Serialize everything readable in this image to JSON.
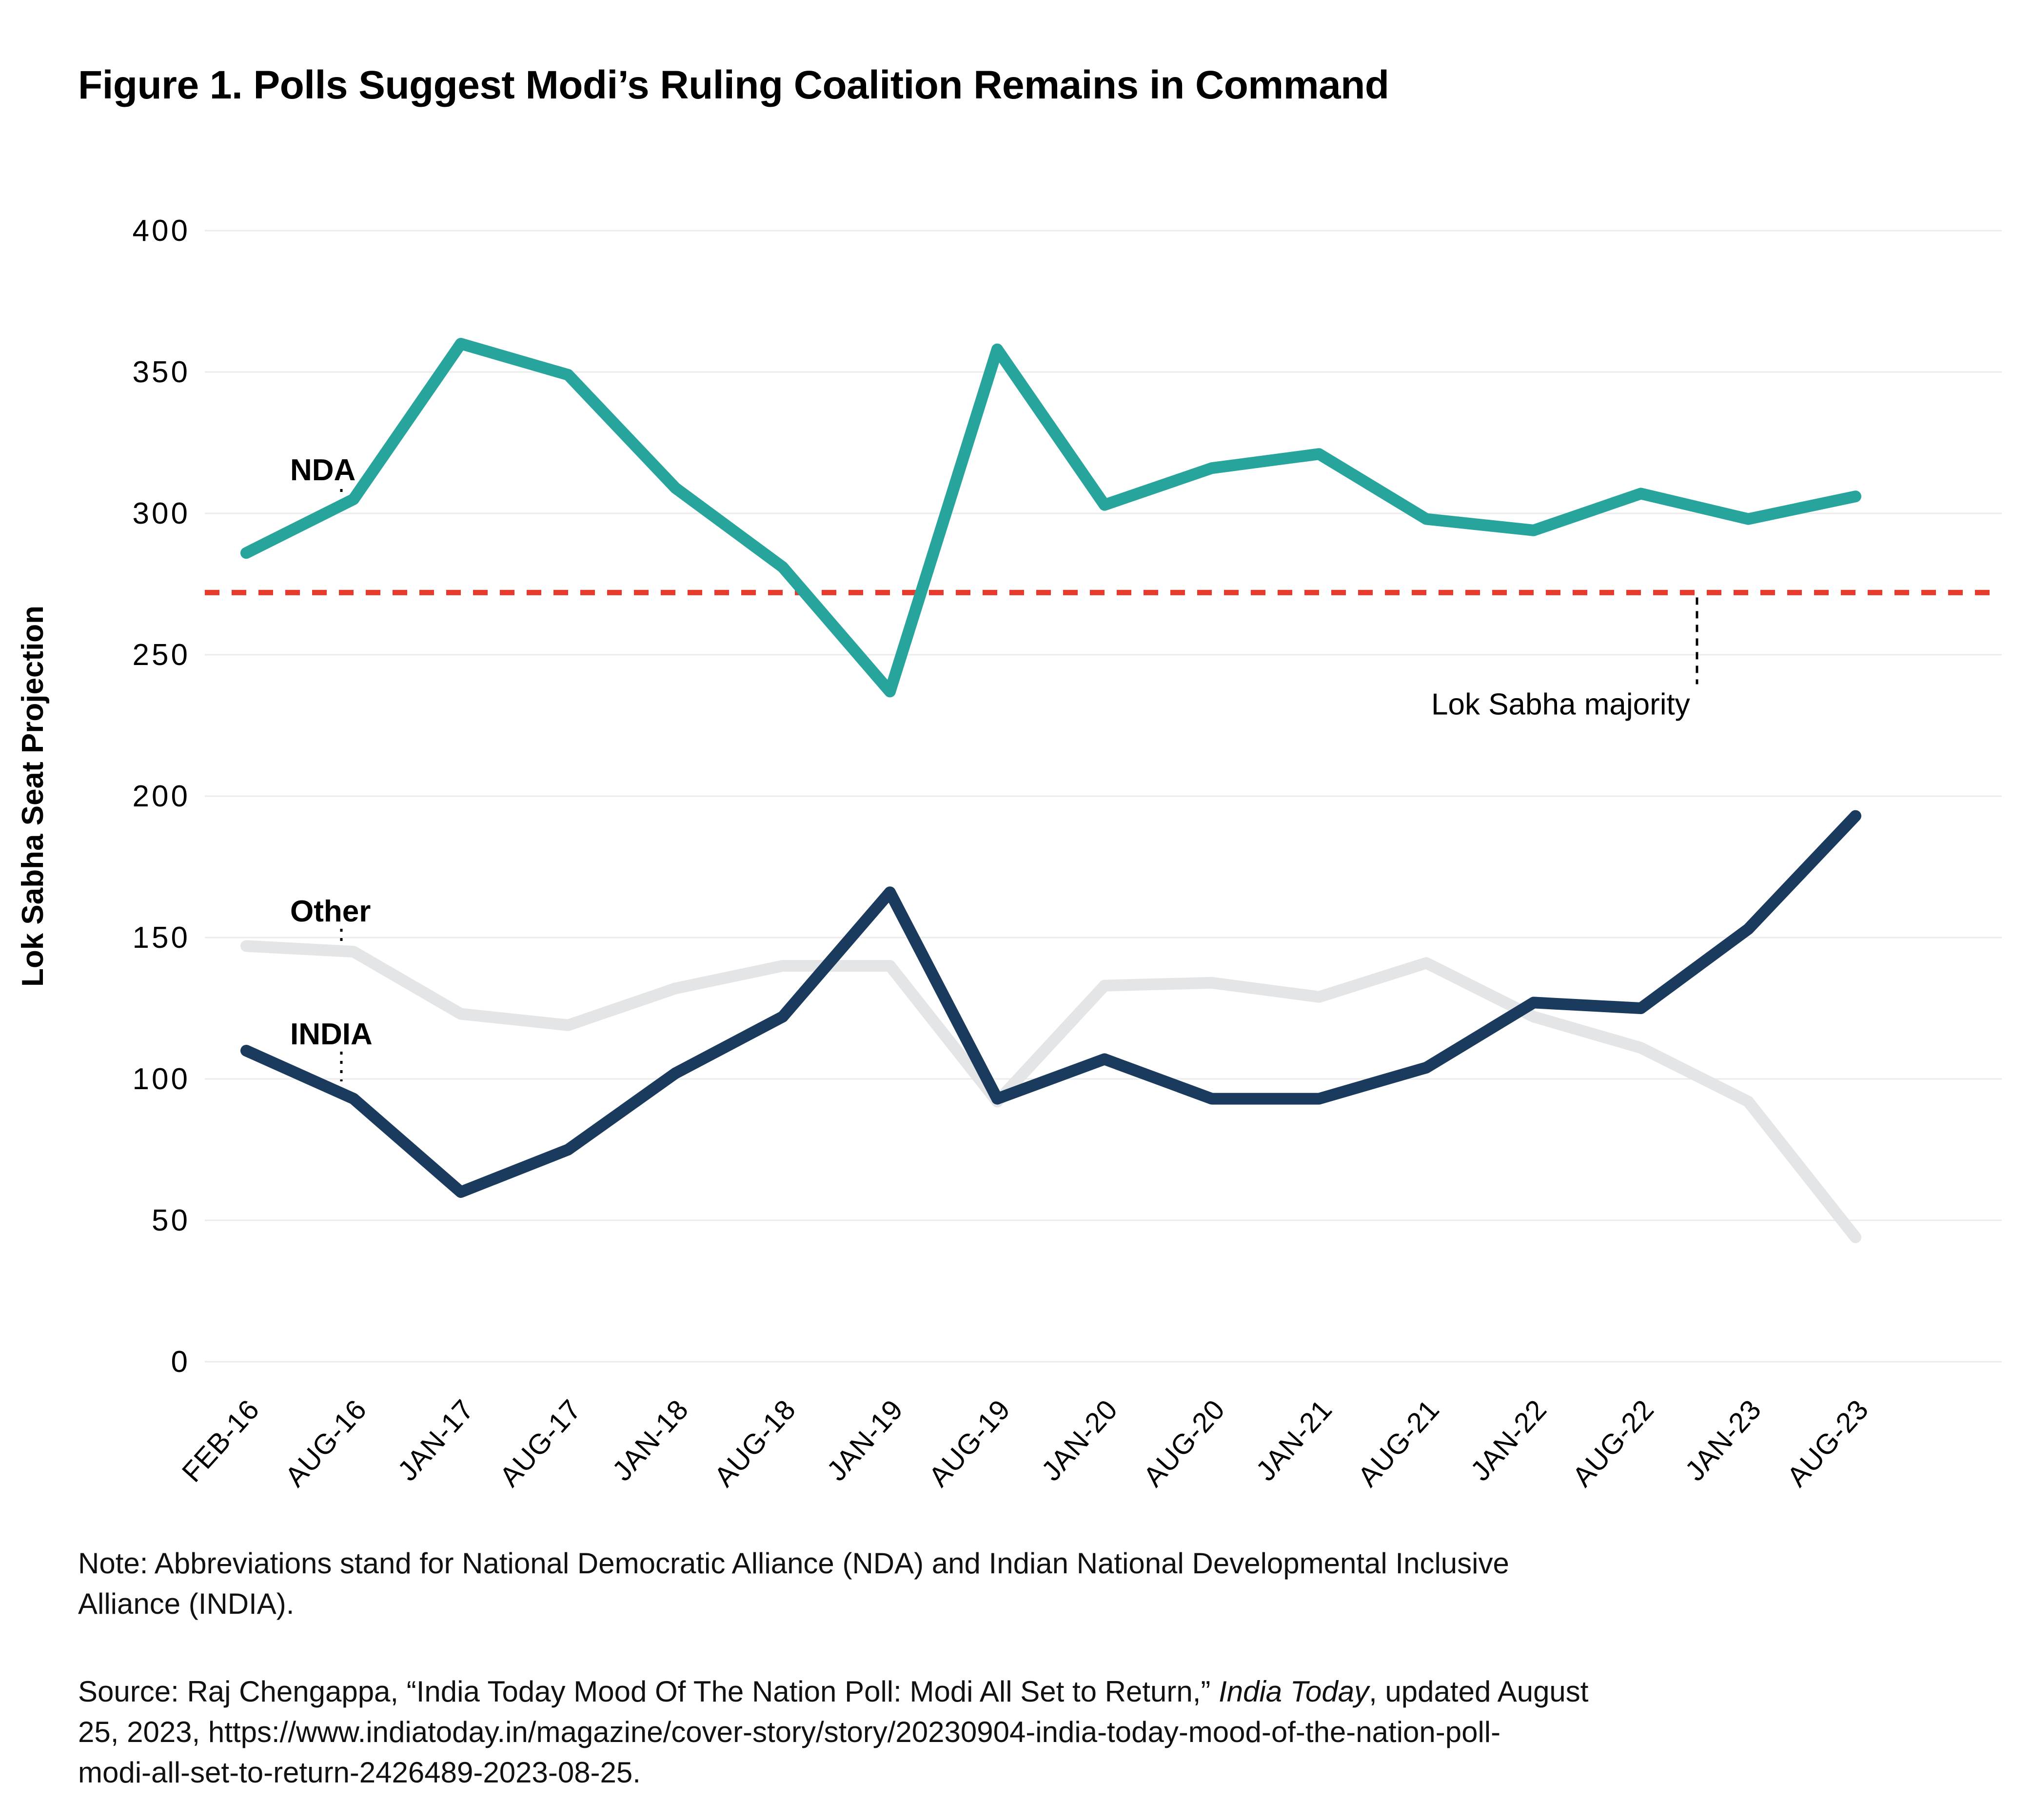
{
  "title": "Figure 1. Polls Suggest Modi’s Ruling Coalition Remains in Command",
  "chart_data": {
    "type": "line",
    "title": "Figure 1. Polls Suggest Modi’s Ruling Coalition Remains in Command",
    "xlabel": "",
    "ylabel": "Lok Sabha Seat Projection",
    "ylim": [
      0,
      400
    ],
    "yticks": [
      0,
      50,
      100,
      150,
      200,
      250,
      300,
      350,
      400
    ],
    "grid": "horizontal",
    "legend_position": "inline-labels",
    "categories": [
      "FEB-16",
      "AUG-16",
      "JAN-17",
      "AUG-17",
      "JAN-18",
      "AUG-18",
      "JAN-19",
      "AUG-19",
      "JAN-20",
      "AUG-20",
      "JAN-21",
      "AUG-21",
      "JAN-22",
      "AUG-22",
      "JAN-23",
      "AUG-23"
    ],
    "series": [
      {
        "name": "Other",
        "color": "#E4E5E7",
        "values": [
          147,
          145,
          123,
          119,
          132,
          140,
          140,
          92,
          133,
          134,
          129,
          141,
          122,
          111,
          92,
          44
        ]
      },
      {
        "name": "INDIA",
        "color": "#1A3B5D",
        "values": [
          110,
          93,
          60,
          75,
          102,
          122,
          166,
          93,
          107,
          93,
          93,
          104,
          127,
          125,
          153,
          193
        ]
      },
      {
        "name": "NDA",
        "color": "#27A59C",
        "values": [
          286,
          305,
          360,
          349,
          309,
          281,
          237,
          358,
          303,
          316,
          321,
          298,
          294,
          307,
          298,
          306
        ]
      }
    ],
    "reference_line": {
      "label": "Lok Sabha majority",
      "value": 272,
      "color": "#E8392D",
      "style": "dashed"
    }
  },
  "note": {
    "line1": "Note: Abbreviations stand for National Democratic Alliance (NDA) and Indian National Developmental Inclusive",
    "line2": "Alliance (INDIA)."
  },
  "source": {
    "line1_pre": "Source: Raj Chengappa, “India Today Mood Of The Nation Poll: Modi All Set to Return,” ",
    "line1_italic": "India Today",
    "line1_post": ", updated August",
    "line2": "25, 2023, https://www.indiatoday.in/magazine/cover-story/story/20230904-india-today-mood-of-the-nation-poll-",
    "line3": "modi-all-set-to-return-2426489-2023-08-25."
  }
}
